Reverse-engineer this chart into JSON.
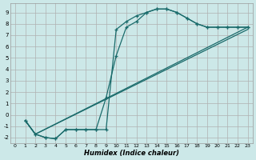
{
  "xlabel": "Humidex (Indice chaleur)",
  "bg_color": "#cce8e8",
  "grid_color": "#b0b0b0",
  "line_color": "#1a6b6b",
  "xlim": [
    -0.5,
    23.5
  ],
  "ylim": [
    -2.5,
    9.8
  ],
  "xticks": [
    0,
    1,
    2,
    3,
    4,
    5,
    6,
    7,
    8,
    9,
    10,
    11,
    12,
    13,
    14,
    15,
    16,
    17,
    18,
    19,
    20,
    21,
    22,
    23
  ],
  "yticks": [
    -2,
    -1,
    0,
    1,
    2,
    3,
    4,
    5,
    6,
    7,
    8,
    9
  ],
  "curve1_x": [
    1,
    2,
    3,
    4,
    5,
    6,
    7,
    8,
    9,
    10,
    11,
    12,
    13,
    14,
    15,
    16,
    17,
    18,
    19,
    20,
    21,
    22,
    23
  ],
  "curve1_y": [
    -0.5,
    -1.7,
    -2.0,
    -2.1,
    -1.3,
    -1.3,
    -1.3,
    -1.3,
    1.5,
    5.2,
    7.7,
    8.2,
    9.0,
    9.3,
    9.3,
    9.0,
    8.5,
    8.0,
    7.7,
    7.7,
    7.7,
    7.7,
    7.7
  ],
  "curve2_x": [
    1,
    2,
    3,
    4,
    5,
    6,
    7,
    8,
    9,
    10,
    11,
    12,
    13,
    14,
    15,
    16,
    17,
    18,
    19,
    20,
    21,
    22,
    23
  ],
  "curve2_y": [
    -0.5,
    -1.7,
    -2.0,
    -2.1,
    -1.3,
    -1.3,
    -1.3,
    -1.3,
    -1.3,
    7.5,
    8.2,
    8.7,
    9.0,
    9.3,
    9.3,
    9.0,
    8.5,
    8.0,
    7.7,
    7.7,
    7.7,
    7.7,
    7.7
  ],
  "line1_x": [
    1,
    2,
    23
  ],
  "line1_y": [
    -0.5,
    -1.7,
    7.7
  ],
  "line2_x": [
    1,
    2,
    23
  ],
  "line2_y": [
    -0.5,
    -1.7,
    7.5
  ]
}
